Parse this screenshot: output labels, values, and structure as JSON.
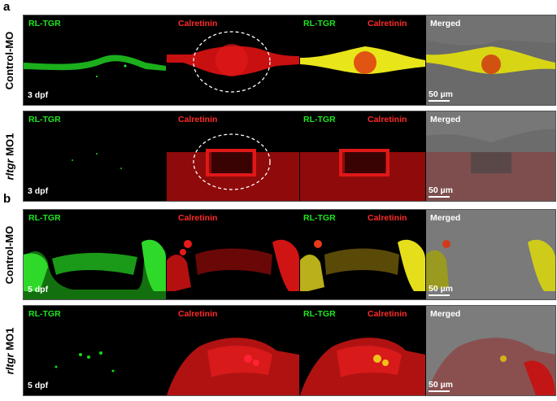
{
  "panels": [
    {
      "letter": "a",
      "rows": [
        {
          "condition": "Control-MO",
          "condition_gene": "",
          "stage": "3 dpf",
          "channels": {
            "green": "RL-TGR",
            "red": "Calretinin",
            "merged": "Merged"
          },
          "scale": "50 µm"
        },
        {
          "condition": " MO1",
          "condition_gene": "rltgr",
          "stage": "3 dpf",
          "channels": {
            "green": "RL-TGR",
            "red": "Calretinin",
            "merged": "Merged"
          },
          "scale": "50 µm"
        }
      ]
    },
    {
      "letter": "b",
      "rows": [
        {
          "condition": "Control-MO",
          "condition_gene": "",
          "stage": "5 dpf",
          "channels": {
            "green": "RL-TGR",
            "red": "Calretinin",
            "merged": "Merged"
          },
          "scale": "50 µm"
        },
        {
          "condition": " MO1",
          "condition_gene": "rltgr",
          "stage": "5 dpf",
          "channels": {
            "green": "RL-TGR",
            "red": "Calretinin",
            "merged": "Merged"
          },
          "scale": "50 µm"
        }
      ]
    }
  ],
  "colors": {
    "green_channel": "#1ee81e",
    "red_channel": "#ff2a2a",
    "merged_bg": "#6f6f6f"
  }
}
